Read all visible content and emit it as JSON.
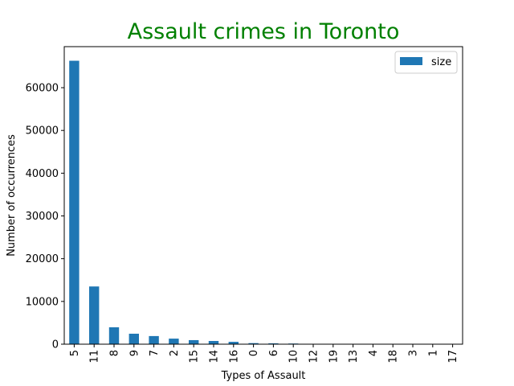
{
  "chart_data": {
    "type": "bar",
    "title": "Assault crimes in Toronto",
    "xlabel": "Types of Assault",
    "ylabel": "Number of occurrences",
    "categories": [
      "5",
      "11",
      "8",
      "9",
      "7",
      "2",
      "15",
      "14",
      "16",
      "0",
      "6",
      "10",
      "12",
      "19",
      "13",
      "4",
      "18",
      "3",
      "1",
      "17"
    ],
    "series": [
      {
        "name": "size",
        "color": "#1f77b4",
        "values": [
          66300,
          13500,
          3950,
          2450,
          1900,
          1300,
          950,
          750,
          550,
          250,
          200,
          150,
          80,
          60,
          40,
          30,
          20,
          15,
          10,
          5
        ]
      }
    ],
    "ylim": [
      0,
      69600
    ],
    "yticks": [
      0,
      10000,
      20000,
      30000,
      40000,
      50000,
      60000
    ],
    "grid": false,
    "legend_position": "top-right"
  }
}
